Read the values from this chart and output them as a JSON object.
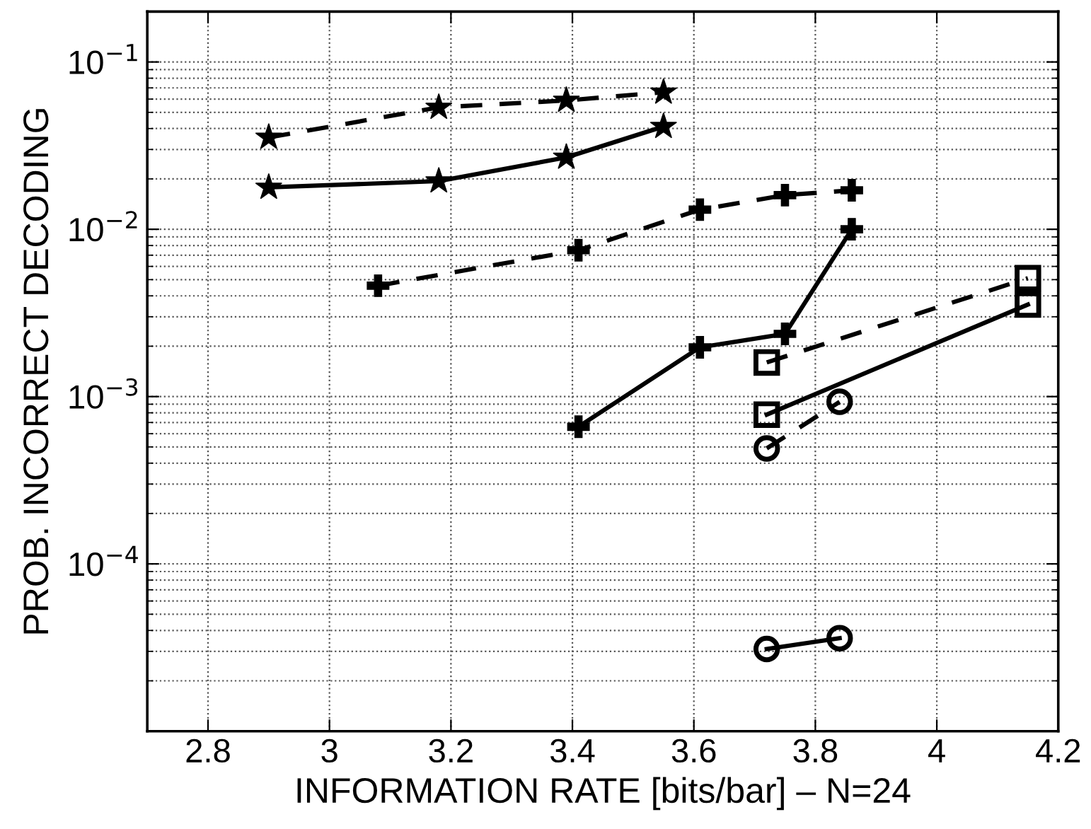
{
  "chart_data": {
    "type": "line",
    "xlabel": "INFORMATION RATE [bits/bar] – N=24",
    "ylabel": "PROB. INCORRECT DECODING",
    "log": "y",
    "grid": true,
    "legend": false,
    "xlim": [
      2.7,
      4.2
    ],
    "xticks": [
      2.8,
      3,
      3.2,
      3.4,
      3.6,
      3.8,
      4,
      4.2
    ],
    "ylim": [
      1e-05,
      0.2
    ],
    "yticks": [
      {
        "value": 0.0001,
        "label": "10$^{−4}$"
      },
      {
        "value": 0.001,
        "label": "10$^{−3}$"
      },
      {
        "value": 0.01,
        "label": "10$^{−2}$"
      },
      {
        "value": 0.1,
        "label": "10$^{−1}$"
      }
    ],
    "series": [
      {
        "color": "#000000",
        "marker": "star",
        "line_style": "dashed",
        "x": [
          2.9,
          3.18,
          3.39,
          3.55
        ],
        "values": [
          0.0354,
          0.0535,
          0.0589,
          0.0659
        ]
      },
      {
        "color": "#000000",
        "marker": "star",
        "line_style": "solid",
        "x": [
          2.9,
          3.18,
          3.39,
          3.55
        ],
        "values": [
          0.0178,
          0.0194,
          0.0269,
          0.0411
        ]
      },
      {
        "color": "#000000",
        "marker": "cross",
        "line_style": "dashed",
        "x": [
          3.08,
          3.41,
          3.61,
          3.75,
          3.86
        ],
        "values": [
          0.0046,
          0.0075,
          0.0131,
          0.016,
          0.0171
        ]
      },
      {
        "color": "#000000",
        "marker": "cross",
        "line_style": "solid",
        "x": [
          3.41,
          3.61,
          3.75,
          3.86
        ],
        "values": [
          0.00066,
          0.00197,
          0.00237,
          0.01
        ]
      },
      {
        "color": "#000000",
        "marker": "square",
        "line_style": "dashed",
        "x": [
          3.72,
          4.15
        ],
        "values": [
          0.0016,
          0.0051
        ]
      },
      {
        "color": "#000000",
        "marker": "square",
        "line_style": "solid",
        "x": [
          3.72,
          4.15
        ],
        "values": [
          0.00078,
          0.00355
        ]
      },
      {
        "color": "#000000",
        "marker": "circle",
        "line_style": "dashed",
        "x": [
          3.72,
          3.84
        ],
        "values": [
          0.00049,
          0.00093
        ]
      },
      {
        "color": "#000000",
        "marker": "circle",
        "line_style": "solid",
        "x": [
          3.72,
          3.84
        ],
        "values": [
          3.1e-05,
          3.6e-05
        ]
      }
    ]
  }
}
